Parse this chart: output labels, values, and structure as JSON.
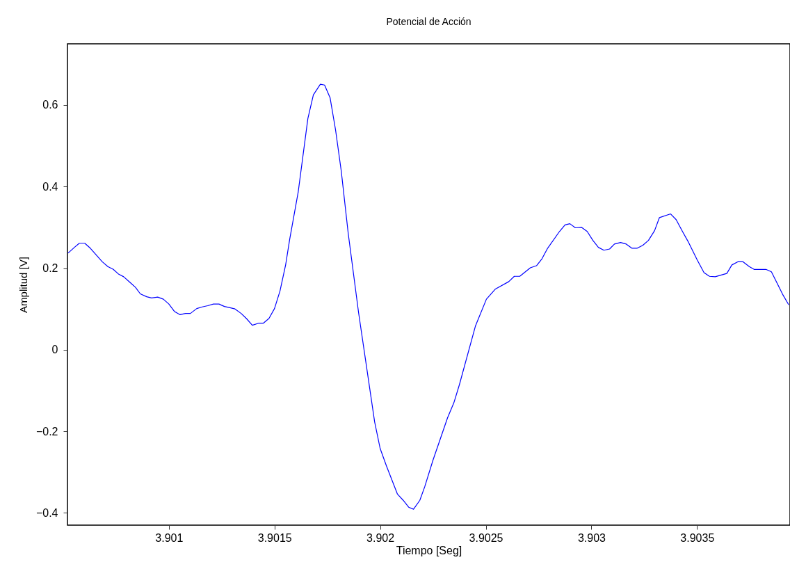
{
  "chart_data": {
    "type": "line",
    "title": "Potencial de Acción",
    "xlabel": "Tiempo [Seg]",
    "ylabel": "Amplitud [V]",
    "xlim": [
      3.90052,
      3.90394
    ],
    "ylim": [
      -0.43,
      0.75
    ],
    "xticks": [
      3.901,
      3.9015,
      3.902,
      3.9025,
      3.903,
      3.9035
    ],
    "yticks": [
      -0.4,
      -0.2,
      0,
      0.2,
      0.4,
      0.6
    ],
    "grid": false,
    "marker": "none",
    "line_style": "solid",
    "series": [
      {
        "color": "#0000ff",
        "x": [
          3.900523,
          3.900553,
          3.900576,
          3.900602,
          3.900628,
          3.900655,
          3.900684,
          3.900711,
          3.900737,
          3.900763,
          3.900786,
          3.900816,
          3.900842,
          3.900865,
          3.900895,
          3.900918,
          3.900947,
          3.900974,
          3.901,
          3.901026,
          3.901053,
          3.901079,
          3.901102,
          3.901132,
          3.901158,
          3.901184,
          3.901211,
          3.901237,
          3.901263,
          3.901289,
          3.901313,
          3.901342,
          3.901368,
          3.901395,
          3.901424,
          3.901447,
          3.901474,
          3.9015,
          3.901526,
          3.901553,
          3.901572,
          3.901612,
          3.901658,
          3.901684,
          3.901717,
          3.901737,
          3.901763,
          3.901789,
          3.901816,
          3.901849,
          3.901898,
          3.901974,
          3.902,
          3.90203,
          3.902082,
          3.902109,
          3.902135,
          3.902158,
          3.902188,
          3.902211,
          3.90225,
          3.902319,
          3.902349,
          3.902375,
          3.902451,
          3.902503,
          3.902546,
          3.902609,
          3.902635,
          3.902661,
          3.902711,
          3.90274,
          3.902766,
          3.902793,
          3.902849,
          3.902875,
          3.902898,
          3.902924,
          3.902954,
          3.90298,
          3.903007,
          3.903033,
          3.903059,
          3.903086,
          3.903109,
          3.903138,
          3.903165,
          3.903191,
          3.903217,
          3.903243,
          3.90327,
          3.903299,
          3.903322,
          3.903375,
          3.903401,
          3.903431,
          3.903457,
          3.9035,
          3.903533,
          3.903559,
          3.903586,
          3.903641,
          3.903665,
          3.903694,
          3.903717,
          3.903747,
          3.90377,
          3.903826,
          3.903852,
          3.903905,
          3.903934
        ],
        "values": [
          0.237,
          0.251,
          0.261,
          0.261,
          0.249,
          0.233,
          0.216,
          0.204,
          0.197,
          0.185,
          0.179,
          0.165,
          0.153,
          0.137,
          0.13,
          0.127,
          0.129,
          0.124,
          0.112,
          0.094,
          0.086,
          0.089,
          0.089,
          0.101,
          0.105,
          0.108,
          0.112,
          0.112,
          0.106,
          0.103,
          0.1,
          0.089,
          0.076,
          0.06,
          0.065,
          0.065,
          0.077,
          0.101,
          0.144,
          0.209,
          0.271,
          0.386,
          0.567,
          0.625,
          0.651,
          0.649,
          0.618,
          0.539,
          0.438,
          0.285,
          0.091,
          -0.177,
          -0.242,
          -0.285,
          -0.354,
          -0.369,
          -0.386,
          -0.391,
          -0.369,
          -0.336,
          -0.271,
          -0.167,
          -0.13,
          -0.086,
          0.058,
          0.124,
          0.149,
          0.167,
          0.18,
          0.18,
          0.201,
          0.206,
          0.223,
          0.249,
          0.29,
          0.306,
          0.309,
          0.299,
          0.3,
          0.29,
          0.268,
          0.251,
          0.244,
          0.247,
          0.259,
          0.263,
          0.259,
          0.249,
          0.249,
          0.256,
          0.268,
          0.292,
          0.324,
          0.333,
          0.319,
          0.29,
          0.266,
          0.221,
          0.189,
          0.18,
          0.179,
          0.187,
          0.208,
          0.216,
          0.216,
          0.204,
          0.197,
          0.197,
          0.191,
          0.136,
          0.11
        ]
      }
    ]
  }
}
